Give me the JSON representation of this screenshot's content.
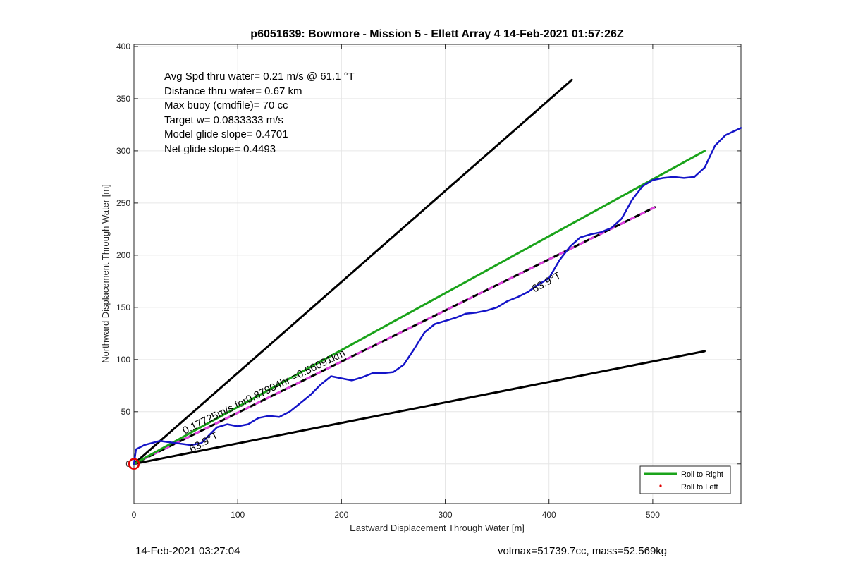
{
  "chart_data": {
    "type": "line",
    "title": "p6051639: Bowmore - Mission 5 - Ellett Array 4 14-Feb-2021 01:57:26Z",
    "xlabel": "Eastward Displacement Through Water [m]",
    "ylabel": "Northward Displacement Through Water [m]",
    "xlim": [
      0,
      585
    ],
    "ylim": [
      -38,
      402
    ],
    "xticks": [
      0,
      100,
      200,
      300,
      400,
      500
    ],
    "yticks": [
      0,
      50,
      100,
      150,
      200,
      250,
      300,
      350,
      400
    ],
    "grid": true,
    "legend_position": "bottom-right",
    "annotations": [
      "Avg Spd thru water=  0.21 m/s @  61.1 °T",
      "Distance thru water=  0.67 km",
      "Max buoy (cmdfile)= 70 cc",
      "Target w= 0.0833333 m/s",
      "Model glide slope= 0.4701",
      "Net glide slope= 0.4493"
    ],
    "line_labels": {
      "speed_label": "0.17725m/s for0.87904hr =0.56091km",
      "heading_label_1": "63.9°T",
      "heading_label_2": "63.9°T"
    },
    "series": [
      {
        "name": "Roll to Right",
        "color": "#1aa31a",
        "x": [
          0,
          550
        ],
        "y": [
          0,
          300
        ]
      },
      {
        "name": "Roll to Left",
        "color": "#e00000",
        "x": [],
        "y": []
      }
    ],
    "unlabeled_lines": {
      "track": {
        "color": "#1414c8",
        "x": [
          0,
          2,
          10,
          25,
          40,
          55,
          65,
          72,
          80,
          90,
          100,
          110,
          120,
          130,
          140,
          150,
          160,
          170,
          180,
          190,
          200,
          210,
          220,
          230,
          240,
          250,
          260,
          270,
          280,
          290,
          300,
          310,
          320,
          330,
          340,
          350,
          360,
          370,
          380,
          390,
          400,
          410,
          420,
          430,
          440,
          450,
          460,
          470,
          480,
          490,
          500,
          510,
          520,
          530,
          540,
          550,
          560,
          570,
          585
        ],
        "y": [
          0,
          14,
          18,
          22,
          20,
          18,
          20,
          27,
          35,
          38,
          36,
          38,
          44,
          46,
          45,
          50,
          58,
          66,
          76,
          84,
          82,
          80,
          83,
          87,
          87,
          88,
          95,
          110,
          126,
          134,
          137,
          140,
          144,
          145,
          147,
          150,
          156,
          160,
          165,
          172,
          178,
          195,
          208,
          217,
          220,
          222,
          226,
          235,
          253,
          266,
          272,
          274,
          275,
          274,
          275,
          284,
          305,
          315,
          322
        ]
      },
      "upper_bound": {
        "color": "#000000",
        "x": [
          0,
          422
        ],
        "y": [
          0,
          368
        ]
      },
      "lower_bound": {
        "color": "#000000",
        "x": [
          0,
          550
        ],
        "y": [
          0,
          108
        ]
      },
      "net_line": {
        "color": "#000000",
        "dash_color": "#e040e0",
        "x": [
          0,
          502
        ],
        "y": [
          0,
          246
        ]
      }
    },
    "start_marker": {
      "color": "#e00000",
      "x": 0,
      "y": 0
    }
  },
  "footer": {
    "left": "14-Feb-2021 03:27:04",
    "right": "volmax=51739.7cc, mass=52.569kg"
  }
}
